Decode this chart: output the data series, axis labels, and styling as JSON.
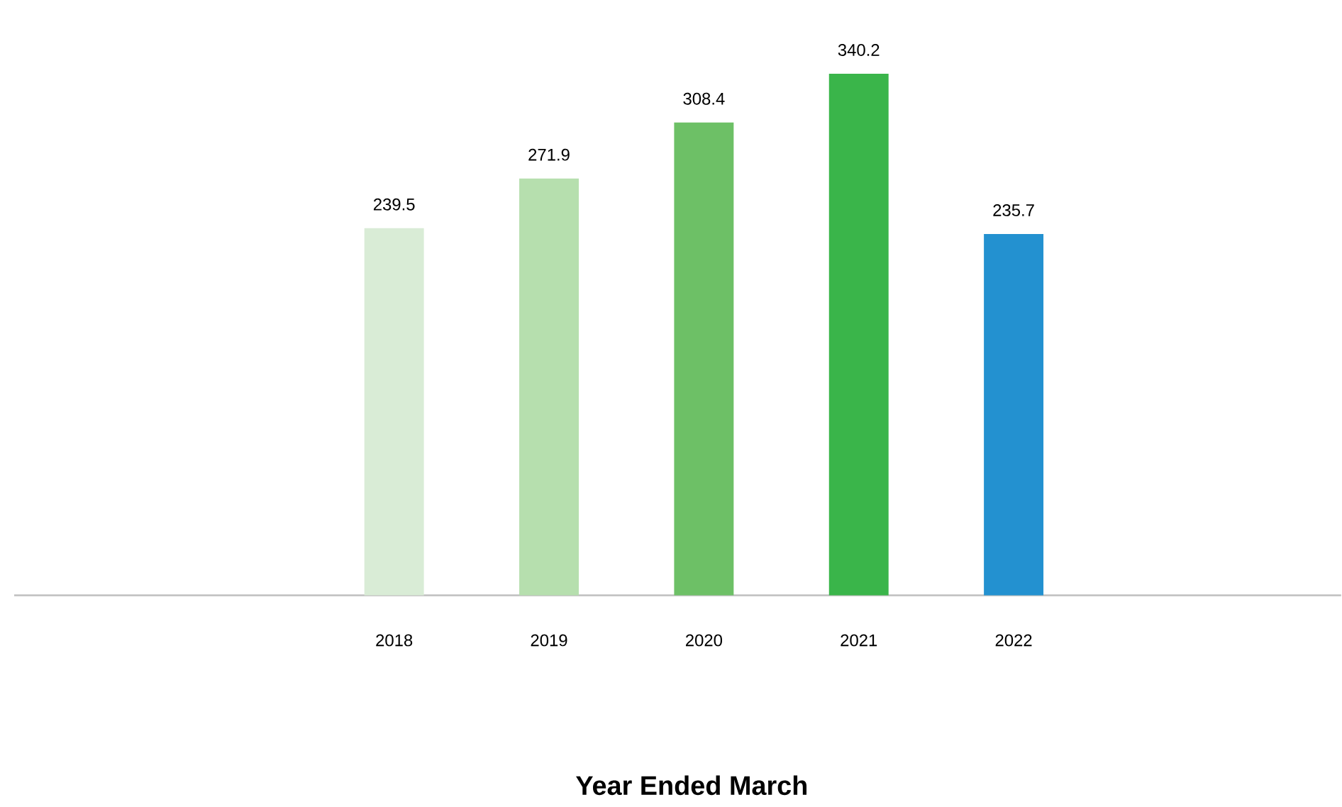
{
  "chart_data": {
    "type": "bar",
    "xlabel": "Year Ended March",
    "categories": [
      "2018",
      "2019",
      "2020",
      "2021",
      "2022"
    ],
    "values": [
      239.5,
      271.9,
      308.4,
      340.2,
      235.7
    ],
    "colors": [
      "#d9ecd6",
      "#b6dfae",
      "#6dc066",
      "#3ab54a",
      "#2391d0"
    ],
    "data_labels": true,
    "grid": false
  }
}
